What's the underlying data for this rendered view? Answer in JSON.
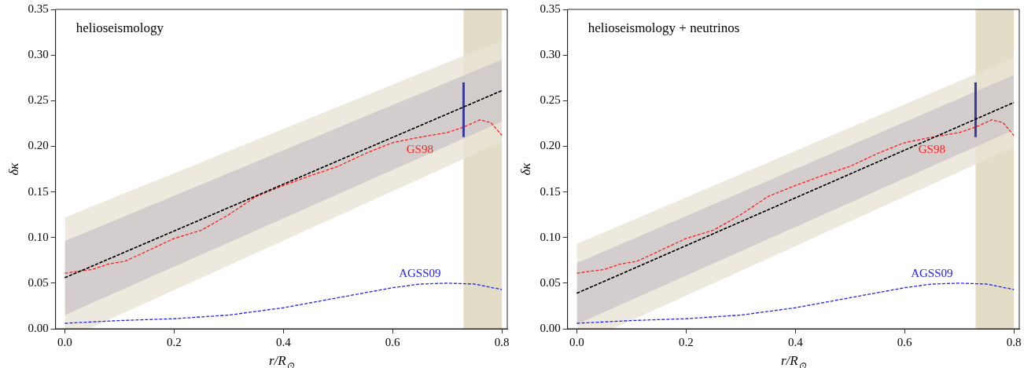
{
  "chart_data": [
    {
      "type": "line",
      "annotations": [
        "helioseismology"
      ],
      "xlabel": "r/R$_{⊙}$",
      "ylabel": "δκ",
      "xlim": [
        -0.017,
        0.81
      ],
      "ylim": [
        0,
        0.35
      ],
      "xticks": [
        {
          "value": 0,
          "label": "0.0"
        },
        {
          "value": 0.2,
          "label": "0.2"
        },
        {
          "value": 0.4,
          "label": "0.4"
        },
        {
          "value": 0.6,
          "label": "0.6"
        },
        {
          "value": 0.8,
          "label": "0.8"
        }
      ],
      "yticks": [
        {
          "value": 0,
          "label": "0.00"
        },
        {
          "value": 0.05,
          "label": "0.05"
        },
        {
          "value": 0.1,
          "label": "0.10"
        },
        {
          "value": 0.15,
          "label": "0.15"
        },
        {
          "value": 0.2,
          "label": "0.20"
        },
        {
          "value": 0.25,
          "label": "0.25"
        },
        {
          "value": 0.3,
          "label": "0.30"
        },
        {
          "value": 0.35,
          "label": "0.35"
        }
      ],
      "bands": [
        {
          "axis": "x",
          "from": 0.73,
          "to": 0.8,
          "color": "#e3dcc6"
        }
      ],
      "series": [
        {
          "color": "#000000",
          "line_style": "dashed",
          "x": [
            0,
            0.044,
            0.8
          ],
          "values": [
            0.056,
            0.067,
            0.261
          ],
          "lower": [
            0,
            0,
            0.205
          ],
          "upper": [
            0.122,
            0.1327,
            0.316
          ]
        },
        {
          "color": "#000000",
          "line_style": "dashed",
          "x": [
            0,
            0.8
          ],
          "values": [
            0.056,
            0.261
          ],
          "lower": [
            0.015,
            0.227
          ],
          "upper": [
            0.096,
            0.295
          ]
        },
        {
          "name": "GS98",
          "color": "#ff2020",
          "line_style": "dashed",
          "x": [
            0,
            0.05,
            0.08,
            0.11,
            0.15,
            0.2,
            0.25,
            0.3,
            0.35,
            0.4,
            0.45,
            0.5,
            0.55,
            0.6,
            0.65,
            0.7,
            0.73,
            0.76,
            0.78,
            0.8
          ],
          "values": [
            0.061,
            0.065,
            0.071,
            0.074,
            0.085,
            0.099,
            0.108,
            0.125,
            0.145,
            0.157,
            0.168,
            0.178,
            0.192,
            0.204,
            0.21,
            0.215,
            0.221,
            0.229,
            0.226,
            0.212
          ]
        },
        {
          "name": "AGSS09",
          "color": "#2020ff",
          "line_style": "dashed",
          "x": [
            0,
            0.1,
            0.2,
            0.3,
            0.4,
            0.5,
            0.6,
            0.65,
            0.7,
            0.75,
            0.8
          ],
          "values": [
            0.006,
            0.009,
            0.011,
            0.015,
            0.023,
            0.034,
            0.045,
            0.049,
            0.05,
            0.049,
            0.043
          ]
        },
        {
          "color": "#3a3a98",
          "x": [
            0.73,
            0.73
          ],
          "values": [
            0.21,
            0.27
          ]
        }
      ]
    },
    {
      "type": "line",
      "annotations": [
        "helioseismology + neutrinos"
      ],
      "xlabel": "r/R$_{⊙}$",
      "ylabel": "δκ",
      "xlim": [
        -0.017,
        0.81
      ],
      "ylim": [
        0,
        0.35
      ],
      "xticks": [
        {
          "value": 0,
          "label": "0.0"
        },
        {
          "value": 0.2,
          "label": "0.2"
        },
        {
          "value": 0.4,
          "label": "0.4"
        },
        {
          "value": 0.6,
          "label": "0.6"
        },
        {
          "value": 0.8,
          "label": "0.8"
        }
      ],
      "yticks": [
        {
          "value": 0,
          "label": "0.00"
        },
        {
          "value": 0.05,
          "label": "0.05"
        },
        {
          "value": 0.1,
          "label": "0.10"
        },
        {
          "value": 0.15,
          "label": "0.15"
        },
        {
          "value": 0.2,
          "label": "0.20"
        },
        {
          "value": 0.25,
          "label": "0.25"
        },
        {
          "value": 0.3,
          "label": "0.30"
        },
        {
          "value": 0.35,
          "label": "0.35"
        }
      ],
      "bands": [
        {
          "axis": "x",
          "from": 0.73,
          "to": 0.8,
          "color": "#e3dcc6"
        }
      ],
      "series": [
        {
          "color": "#000000",
          "line_style": "dashed",
          "x": [
            0,
            0.066,
            0.8
          ],
          "values": [
            0.039,
            0.056,
            0.248
          ],
          "lower": [
            0,
            0,
            0.199
          ],
          "upper": [
            0.093,
            0.1098,
            0.297
          ]
        },
        {
          "color": "#000000",
          "line_style": "dashed",
          "x": [
            0,
            0.8
          ],
          "values": [
            0.039,
            0.248
          ],
          "lower": [
            0.005,
            0.218
          ],
          "upper": [
            0.072,
            0.278
          ]
        },
        {
          "name": "GS98",
          "color": "#ff2020",
          "line_style": "dashed",
          "x": [
            0,
            0.05,
            0.08,
            0.11,
            0.15,
            0.2,
            0.25,
            0.3,
            0.35,
            0.4,
            0.45,
            0.5,
            0.55,
            0.6,
            0.65,
            0.7,
            0.73,
            0.76,
            0.78,
            0.8
          ],
          "values": [
            0.061,
            0.065,
            0.071,
            0.074,
            0.085,
            0.099,
            0.108,
            0.125,
            0.145,
            0.157,
            0.168,
            0.178,
            0.192,
            0.204,
            0.21,
            0.215,
            0.221,
            0.229,
            0.226,
            0.212
          ]
        },
        {
          "name": "AGSS09",
          "color": "#2020ff",
          "line_style": "dashed",
          "x": [
            0,
            0.1,
            0.2,
            0.3,
            0.4,
            0.5,
            0.6,
            0.65,
            0.7,
            0.75,
            0.8
          ],
          "values": [
            0.006,
            0.009,
            0.011,
            0.015,
            0.023,
            0.034,
            0.045,
            0.049,
            0.05,
            0.049,
            0.043
          ]
        },
        {
          "color": "#3a3a98",
          "x": [
            0.73,
            0.73
          ],
          "values": [
            0.21,
            0.27
          ]
        }
      ]
    }
  ]
}
